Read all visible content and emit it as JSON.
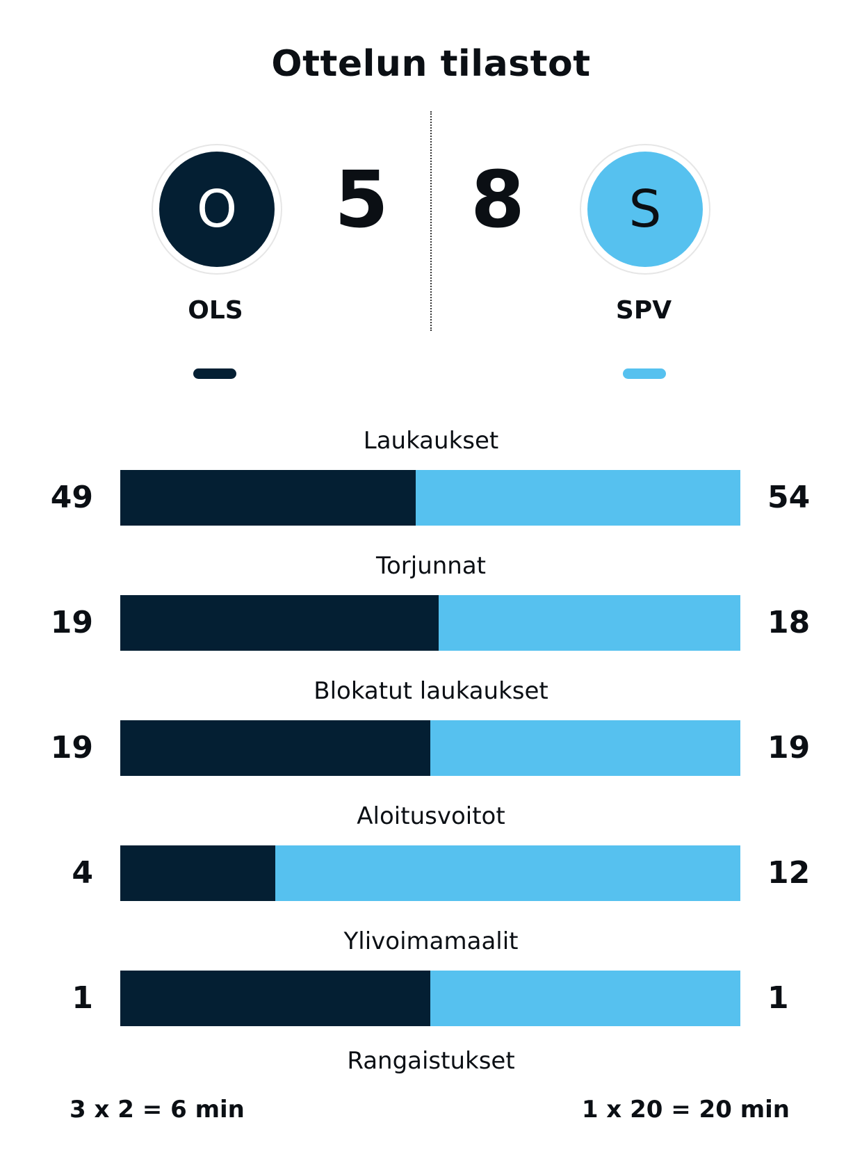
{
  "title": "Ottelun tilastot",
  "colors": {
    "home": "#041f33",
    "away": "#56c1ef"
  },
  "home": {
    "logo_letter": "O",
    "name": "OLS",
    "score": "5"
  },
  "away": {
    "logo_letter": "S",
    "name": "SPV",
    "score": "8"
  },
  "stats": [
    {
      "label": "Laukaukset",
      "home": "49",
      "away": "54",
      "home_share": 0.476
    },
    {
      "label": "Torjunnat",
      "home": "19",
      "away": "18",
      "home_share": 0.514
    },
    {
      "label": "Blokatut laukaukset",
      "home": "19",
      "away": "19",
      "home_share": 0.5
    },
    {
      "label": "Aloitusvoitot",
      "home": "4",
      "away": "12",
      "home_share": 0.25
    },
    {
      "label": "Ylivoimamaalit",
      "home": "1",
      "away": "1",
      "home_share": 0.5
    }
  ],
  "penalties": {
    "label": "Rangaistukset",
    "home": "3 x 2 = 6 min",
    "away": "1 x 20 = 20 min"
  }
}
